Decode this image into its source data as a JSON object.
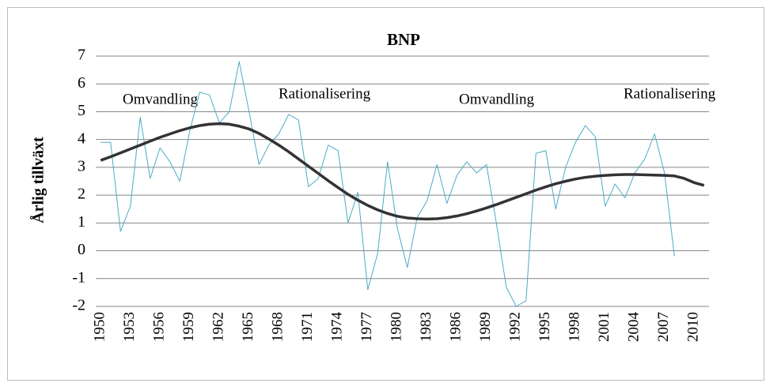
{
  "chart_data": {
    "type": "line",
    "title": "BNP",
    "y_label": "Årlig tillväxt",
    "x": [
      1950,
      1951,
      1952,
      1953,
      1954,
      1955,
      1956,
      1957,
      1958,
      1959,
      1960,
      1961,
      1962,
      1963,
      1964,
      1965,
      1966,
      1967,
      1968,
      1969,
      1970,
      1971,
      1972,
      1973,
      1974,
      1975,
      1976,
      1977,
      1978,
      1979,
      1980,
      1981,
      1982,
      1983,
      1984,
      1985,
      1986,
      1987,
      1988,
      1989,
      1990,
      1991,
      1992,
      1993,
      1994,
      1995,
      1996,
      1997,
      1998,
      1999,
      2000,
      2001,
      2002,
      2003,
      2004,
      2005,
      2006,
      2007,
      2008,
      2009,
      2010,
      2011
    ],
    "xlim": [
      1949.5,
      2011.5
    ],
    "xticks": [
      1950,
      1953,
      1956,
      1959,
      1962,
      1965,
      1968,
      1971,
      1974,
      1977,
      1980,
      1983,
      1986,
      1989,
      1992,
      1995,
      1998,
      2001,
      2004,
      2007,
      2010
    ],
    "ylim": [
      -2,
      7
    ],
    "yticks": [
      -2,
      -1,
      0,
      1,
      2,
      3,
      4,
      5,
      6,
      7
    ],
    "grid": true,
    "series": [
      {
        "color": "#4bacc6",
        "width": 1,
        "values": [
          3.9,
          3.9,
          0.7,
          1.6,
          4.8,
          2.6,
          3.7,
          3.2,
          2.5,
          4.3,
          5.7,
          5.6,
          4.6,
          5.0,
          6.8,
          5.0,
          3.1,
          3.8,
          4.2,
          4.9,
          4.7,
          2.3,
          2.6,
          3.8,
          3.6,
          1.0,
          2.1,
          -1.4,
          -0.1,
          3.2,
          0.8,
          -0.6,
          1.2,
          1.8,
          3.1,
          1.7,
          2.7,
          3.2,
          2.8,
          3.1,
          1.0,
          -1.3,
          -2.0,
          -1.8,
          3.5,
          3.6,
          1.5,
          3.0,
          3.9,
          4.5,
          4.1,
          1.6,
          2.4,
          1.9,
          2.8,
          3.3,
          4.2,
          2.8,
          -0.2,
          null,
          null,
          null
        ]
      },
      {
        "color": "#333333",
        "width": 3.5,
        "values": [
          3.25,
          3.38,
          3.52,
          3.66,
          3.8,
          3.94,
          4.08,
          4.2,
          4.32,
          4.42,
          4.5,
          4.55,
          4.57,
          4.55,
          4.48,
          4.38,
          4.22,
          4.02,
          3.8,
          3.56,
          3.3,
          3.04,
          2.78,
          2.52,
          2.27,
          2.03,
          1.82,
          1.63,
          1.47,
          1.34,
          1.24,
          1.18,
          1.15,
          1.14,
          1.15,
          1.19,
          1.25,
          1.33,
          1.43,
          1.54,
          1.66,
          1.79,
          1.92,
          2.05,
          2.18,
          2.3,
          2.41,
          2.5,
          2.58,
          2.64,
          2.68,
          2.71,
          2.73,
          2.74,
          2.74,
          2.73,
          2.72,
          2.71,
          2.69,
          2.6,
          2.45,
          2.35
        ]
      }
    ],
    "annotations": [
      "Omvandling",
      "Rationalisering",
      "Omvandling",
      "Rationalisering"
    ]
  }
}
